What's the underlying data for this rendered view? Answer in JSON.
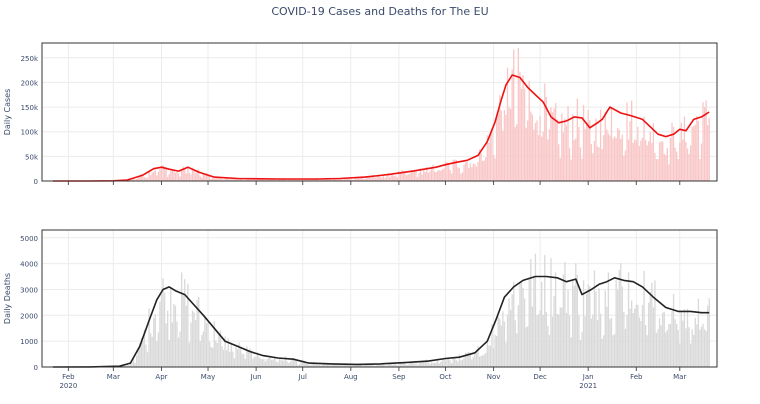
{
  "chart_data": {
    "title": "COVID-19 Cases and Deaths for The EU",
    "x_ticks": [
      {
        "date": "2020-02-01",
        "label": "Feb",
        "sub": "2020"
      },
      {
        "date": "2020-03-01",
        "label": "Mar",
        "sub": ""
      },
      {
        "date": "2020-04-01",
        "label": "Apr",
        "sub": ""
      },
      {
        "date": "2020-05-01",
        "label": "May",
        "sub": ""
      },
      {
        "date": "2020-06-01",
        "label": "Jun",
        "sub": ""
      },
      {
        "date": "2020-07-01",
        "label": "Jul",
        "sub": ""
      },
      {
        "date": "2020-08-01",
        "label": "Aug",
        "sub": ""
      },
      {
        "date": "2020-09-01",
        "label": "Sep",
        "sub": ""
      },
      {
        "date": "2020-10-01",
        "label": "Oct",
        "sub": ""
      },
      {
        "date": "2020-11-01",
        "label": "Nov",
        "sub": ""
      },
      {
        "date": "2020-12-01",
        "label": "Dec",
        "sub": ""
      },
      {
        "date": "2021-01-01",
        "label": "Jan",
        "sub": "2021"
      },
      {
        "date": "2021-02-01",
        "label": "Feb",
        "sub": ""
      },
      {
        "date": "2021-03-01",
        "label": "Mar",
        "sub": ""
      }
    ],
    "x_range": [
      "2020-01-15",
      "2021-03-25"
    ],
    "charts": [
      {
        "type": "bar+line",
        "ylabel": "Daily Cases",
        "ylim": [
          0,
          280000
        ],
        "yticks": [
          0,
          50000,
          100000,
          150000,
          200000,
          250000
        ],
        "ytick_labels": [
          "0",
          "50k",
          "100k",
          "150k",
          "200k",
          "250k"
        ],
        "bar_color": "#f9c7c7",
        "line_color": "#ee1111",
        "series": [
          {
            "type": "line",
            "x": [
              "2020-01-22",
              "2020-02-15",
              "2020-03-01",
              "2020-03-10",
              "2020-03-20",
              "2020-03-27",
              "2020-04-01",
              "2020-04-06",
              "2020-04-12",
              "2020-04-18",
              "2020-04-25",
              "2020-05-05",
              "2020-05-20",
              "2020-06-15",
              "2020-07-10",
              "2020-07-25",
              "2020-08-10",
              "2020-08-25",
              "2020-09-10",
              "2020-09-25",
              "2020-10-01",
              "2020-10-08",
              "2020-10-15",
              "2020-10-22",
              "2020-10-28",
              "2020-11-02",
              "2020-11-06",
              "2020-11-09",
              "2020-11-13",
              "2020-11-18",
              "2020-11-23",
              "2020-11-28",
              "2020-12-03",
              "2020-12-08",
              "2020-12-13",
              "2020-12-18",
              "2020-12-23",
              "2020-12-28",
              "2021-01-02",
              "2021-01-07",
              "2021-01-10",
              "2021-01-15",
              "2021-01-22",
              "2021-01-29",
              "2021-02-05",
              "2021-02-10",
              "2021-02-15",
              "2021-02-20",
              "2021-02-25",
              "2021-03-01",
              "2021-03-05",
              "2021-03-10",
              "2021-03-15",
              "2021-03-20"
            ],
            "y": [
              0,
              100,
              500,
              2000,
              12000,
              25000,
              28000,
              24000,
              20000,
              28000,
              18000,
              8000,
              5000,
              4000,
              4000,
              5000,
              8000,
              13000,
              20000,
              28000,
              33000,
              38000,
              42000,
              52000,
              80000,
              120000,
              165000,
              195000,
              215000,
              210000,
              190000,
              175000,
              160000,
              130000,
              118000,
              122000,
              130000,
              128000,
              108000,
              118000,
              125000,
              150000,
              138000,
              132000,
              125000,
              110000,
              95000,
              90000,
              95000,
              105000,
              102000,
              125000,
              130000,
              140000
            ]
          }
        ]
      },
      {
        "type": "bar+line",
        "ylabel": "Daily Deaths",
        "ylim": [
          0,
          5300
        ],
        "yticks": [
          0,
          1000,
          2000,
          3000,
          4000,
          5000
        ],
        "ytick_labels": [
          "0",
          "1000",
          "2000",
          "3000",
          "4000",
          "5000"
        ],
        "bar_color": "#d9d9d9",
        "line_color": "#222222",
        "series": [
          {
            "type": "line",
            "x": [
              "2020-01-22",
              "2020-02-15",
              "2020-03-05",
              "2020-03-12",
              "2020-03-18",
              "2020-03-24",
              "2020-03-29",
              "2020-04-02",
              "2020-04-06",
              "2020-04-10",
              "2020-04-16",
              "2020-04-22",
              "2020-04-28",
              "2020-05-05",
              "2020-05-12",
              "2020-05-20",
              "2020-05-28",
              "2020-06-05",
              "2020-06-15",
              "2020-06-25",
              "2020-07-05",
              "2020-07-20",
              "2020-08-05",
              "2020-08-20",
              "2020-09-05",
              "2020-09-20",
              "2020-10-01",
              "2020-10-10",
              "2020-10-20",
              "2020-10-28",
              "2020-11-03",
              "2020-11-08",
              "2020-11-14",
              "2020-11-20",
              "2020-11-28",
              "2020-12-05",
              "2020-12-12",
              "2020-12-18",
              "2020-12-24",
              "2020-12-28",
              "2021-01-03",
              "2021-01-08",
              "2021-01-13",
              "2021-01-18",
              "2021-01-24",
              "2021-01-30",
              "2021-02-05",
              "2021-02-12",
              "2021-02-20",
              "2021-02-28",
              "2021-03-08",
              "2021-03-15",
              "2021-03-20"
            ],
            "y": [
              0,
              5,
              30,
              150,
              800,
              1800,
              2600,
              3000,
              3100,
              2950,
              2800,
              2400,
              2000,
              1500,
              1000,
              800,
              600,
              450,
              350,
              300,
              150,
              120,
              100,
              120,
              170,
              230,
              330,
              380,
              550,
              1000,
              1900,
              2700,
              3100,
              3350,
              3500,
              3500,
              3450,
              3300,
              3400,
              2800,
              3000,
              3200,
              3300,
              3450,
              3350,
              3300,
              3100,
              2700,
              2300,
              2150,
              2150,
              2100,
              2100
            ]
          }
        ]
      }
    ]
  }
}
